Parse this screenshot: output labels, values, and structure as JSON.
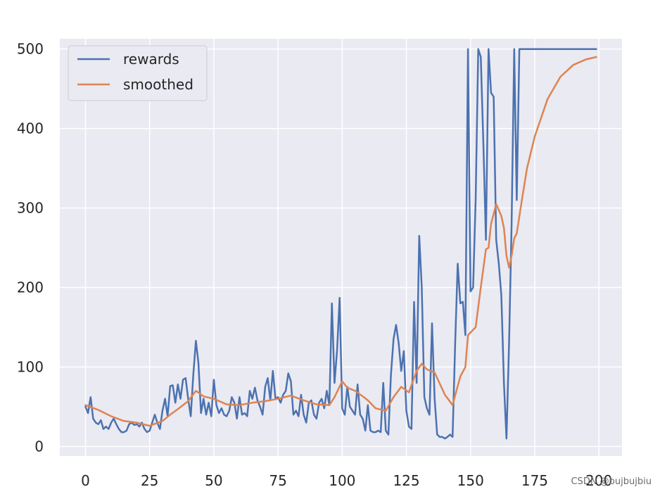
{
  "chart_data": {
    "type": "line",
    "title": "",
    "xlabel": "",
    "ylabel": "",
    "xlim": [
      -10,
      209
    ],
    "ylim": [
      -12,
      513
    ],
    "grid": true,
    "legend_position": "top-left",
    "xticks": [
      0,
      25,
      50,
      75,
      100,
      125,
      150,
      175,
      200
    ],
    "yticks": [
      0,
      100,
      200,
      300,
      400,
      500
    ],
    "series": [
      {
        "name": "rewards",
        "color": "#4c72b0",
        "points": [
          [
            0,
            50
          ],
          [
            1,
            42
          ],
          [
            2,
            62
          ],
          [
            3,
            35
          ],
          [
            4,
            30
          ],
          [
            5,
            28
          ],
          [
            6,
            33
          ],
          [
            7,
            22
          ],
          [
            8,
            25
          ],
          [
            9,
            22
          ],
          [
            10,
            30
          ],
          [
            11,
            35
          ],
          [
            12,
            28
          ],
          [
            13,
            22
          ],
          [
            14,
            18
          ],
          [
            15,
            18
          ],
          [
            16,
            20
          ],
          [
            17,
            28
          ],
          [
            18,
            30
          ],
          [
            19,
            27
          ],
          [
            20,
            28
          ],
          [
            21,
            25
          ],
          [
            22,
            30
          ],
          [
            23,
            22
          ],
          [
            24,
            18
          ],
          [
            25,
            20
          ],
          [
            26,
            30
          ],
          [
            27,
            40
          ],
          [
            28,
            30
          ],
          [
            29,
            22
          ],
          [
            30,
            45
          ],
          [
            31,
            60
          ],
          [
            32,
            38
          ],
          [
            33,
            76
          ],
          [
            34,
            77
          ],
          [
            35,
            55
          ],
          [
            36,
            78
          ],
          [
            37,
            60
          ],
          [
            38,
            84
          ],
          [
            39,
            86
          ],
          [
            40,
            60
          ],
          [
            41,
            38
          ],
          [
            42,
            90
          ],
          [
            43,
            133
          ],
          [
            44,
            105
          ],
          [
            45,
            42
          ],
          [
            46,
            60
          ],
          [
            47,
            40
          ],
          [
            48,
            55
          ],
          [
            49,
            38
          ],
          [
            50,
            84
          ],
          [
            51,
            52
          ],
          [
            52,
            42
          ],
          [
            53,
            48
          ],
          [
            54,
            40
          ],
          [
            55,
            38
          ],
          [
            56,
            45
          ],
          [
            57,
            62
          ],
          [
            58,
            55
          ],
          [
            59,
            35
          ],
          [
            60,
            62
          ],
          [
            61,
            40
          ],
          [
            62,
            42
          ],
          [
            63,
            38
          ],
          [
            64,
            70
          ],
          [
            65,
            60
          ],
          [
            66,
            74
          ],
          [
            67,
            58
          ],
          [
            68,
            50
          ],
          [
            69,
            40
          ],
          [
            70,
            75
          ],
          [
            71,
            86
          ],
          [
            72,
            58
          ],
          [
            73,
            95
          ],
          [
            74,
            60
          ],
          [
            75,
            62
          ],
          [
            76,
            55
          ],
          [
            77,
            65
          ],
          [
            78,
            70
          ],
          [
            79,
            92
          ],
          [
            80,
            82
          ],
          [
            81,
            40
          ],
          [
            82,
            45
          ],
          [
            83,
            38
          ],
          [
            84,
            65
          ],
          [
            85,
            40
          ],
          [
            86,
            30
          ],
          [
            87,
            55
          ],
          [
            88,
            58
          ],
          [
            89,
            40
          ],
          [
            90,
            35
          ],
          [
            91,
            55
          ],
          [
            92,
            60
          ],
          [
            93,
            48
          ],
          [
            94,
            70
          ],
          [
            95,
            52
          ],
          [
            96,
            180
          ],
          [
            97,
            80
          ],
          [
            98,
            120
          ],
          [
            99,
            187
          ],
          [
            100,
            48
          ],
          [
            101,
            40
          ],
          [
            102,
            75
          ],
          [
            103,
            50
          ],
          [
            104,
            45
          ],
          [
            105,
            40
          ],
          [
            106,
            78
          ],
          [
            107,
            40
          ],
          [
            108,
            35
          ],
          [
            109,
            20
          ],
          [
            110,
            52
          ],
          [
            111,
            20
          ],
          [
            112,
            18
          ],
          [
            113,
            18
          ],
          [
            114,
            20
          ],
          [
            115,
            18
          ],
          [
            116,
            80
          ],
          [
            117,
            20
          ],
          [
            118,
            15
          ],
          [
            119,
            90
          ],
          [
            120,
            135
          ],
          [
            121,
            153
          ],
          [
            122,
            130
          ],
          [
            123,
            95
          ],
          [
            124,
            120
          ],
          [
            125,
            45
          ],
          [
            126,
            25
          ],
          [
            127,
            22
          ],
          [
            128,
            182
          ],
          [
            129,
            80
          ],
          [
            130,
            265
          ],
          [
            131,
            200
          ],
          [
            132,
            62
          ],
          [
            133,
            48
          ],
          [
            134,
            40
          ],
          [
            135,
            155
          ],
          [
            136,
            60
          ],
          [
            137,
            15
          ],
          [
            138,
            12
          ],
          [
            139,
            12
          ],
          [
            140,
            10
          ],
          [
            141,
            12
          ],
          [
            142,
            15
          ],
          [
            143,
            12
          ],
          [
            144,
            130
          ],
          [
            145,
            230
          ],
          [
            146,
            180
          ],
          [
            147,
            182
          ],
          [
            148,
            140
          ],
          [
            149,
            500
          ],
          [
            150,
            195
          ],
          [
            151,
            200
          ],
          [
            152,
            310
          ],
          [
            153,
            500
          ],
          [
            154,
            490
          ],
          [
            155,
            380
          ],
          [
            156,
            260
          ],
          [
            157,
            500
          ],
          [
            158,
            445
          ],
          [
            159,
            440
          ],
          [
            160,
            260
          ],
          [
            161,
            230
          ],
          [
            162,
            190
          ],
          [
            163,
            80
          ],
          [
            164,
            10
          ],
          [
            165,
            130
          ],
          [
            166,
            280
          ],
          [
            167,
            500
          ],
          [
            168,
            310
          ],
          [
            169,
            500
          ],
          [
            170,
            500
          ],
          [
            199,
            500
          ]
        ]
      },
      {
        "name": "smoothed",
        "color": "#dd8452",
        "points": [
          [
            0,
            52
          ],
          [
            5,
            46
          ],
          [
            10,
            38
          ],
          [
            15,
            32
          ],
          [
            20,
            30
          ],
          [
            25,
            26
          ],
          [
            30,
            32
          ],
          [
            33,
            40
          ],
          [
            36,
            47
          ],
          [
            40,
            57
          ],
          [
            43,
            70
          ],
          [
            46,
            63
          ],
          [
            50,
            60
          ],
          [
            55,
            53
          ],
          [
            60,
            52
          ],
          [
            65,
            55
          ],
          [
            70,
            57
          ],
          [
            75,
            60
          ],
          [
            80,
            64
          ],
          [
            85,
            58
          ],
          [
            90,
            53
          ],
          [
            95,
            52
          ],
          [
            97,
            62
          ],
          [
            100,
            82
          ],
          [
            102,
            74
          ],
          [
            105,
            70
          ],
          [
            108,
            63
          ],
          [
            110,
            58
          ],
          [
            113,
            48
          ],
          [
            117,
            45
          ],
          [
            120,
            62
          ],
          [
            123,
            75
          ],
          [
            126,
            68
          ],
          [
            129,
            95
          ],
          [
            131,
            104
          ],
          [
            133,
            97
          ],
          [
            136,
            93
          ],
          [
            140,
            65
          ],
          [
            143,
            52
          ],
          [
            146,
            88
          ],
          [
            148,
            100
          ],
          [
            149,
            140
          ],
          [
            152,
            150
          ],
          [
            154,
            200
          ],
          [
            156,
            248
          ],
          [
            157,
            250
          ],
          [
            158,
            280
          ],
          [
            160,
            305
          ],
          [
            162,
            290
          ],
          [
            163,
            275
          ],
          [
            164,
            240
          ],
          [
            165,
            225
          ],
          [
            166,
            240
          ],
          [
            167,
            262
          ],
          [
            168,
            268
          ],
          [
            170,
            310
          ],
          [
            172,
            350
          ],
          [
            175,
            390
          ],
          [
            180,
            437
          ],
          [
            185,
            465
          ],
          [
            190,
            480
          ],
          [
            195,
            487
          ],
          [
            199,
            490
          ]
        ]
      }
    ]
  },
  "watermark": "CSDN @bujbujbiu"
}
